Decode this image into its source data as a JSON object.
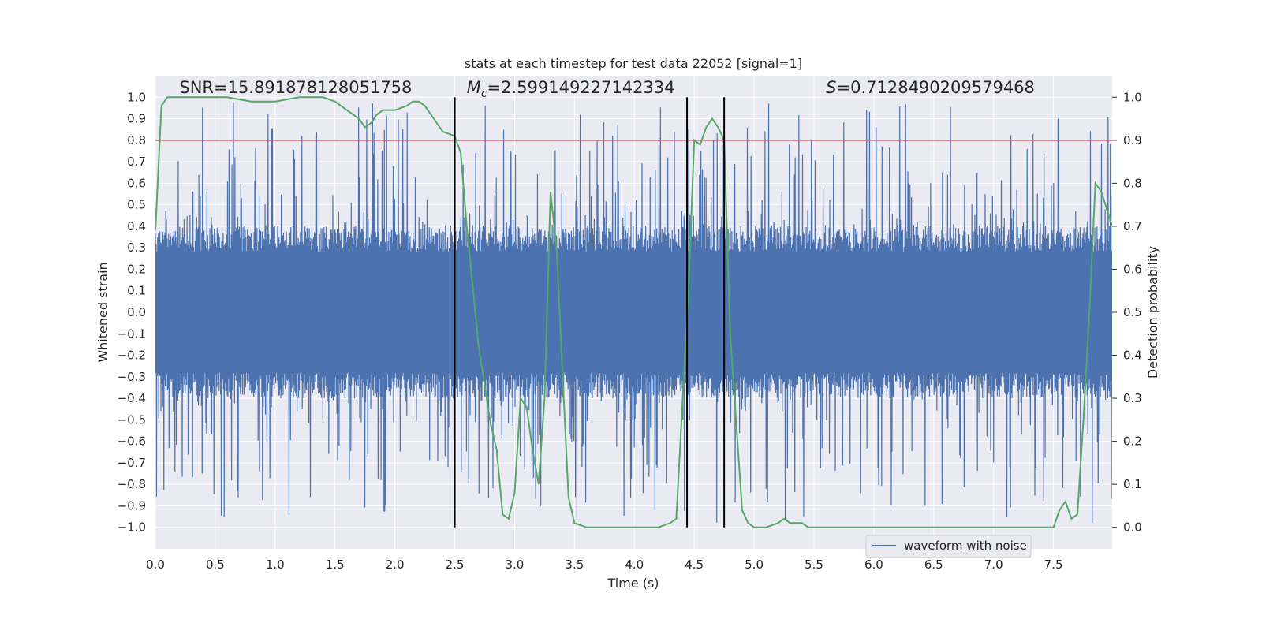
{
  "chart_data": {
    "type": "line",
    "title": "stats at each timestep for test data 22052 [signal=1]",
    "xlabel": "Time (s)",
    "ylabel": "Whitened strain",
    "ylabel_right": "Detection probability",
    "xlim": [
      0,
      7.99
    ],
    "ylim": [
      -1.1,
      1.1
    ],
    "ylim_right": [
      -0.05,
      1.05
    ],
    "x_ticks": [
      0.0,
      0.5,
      1.0,
      1.5,
      2.0,
      2.5,
      3.0,
      3.5,
      4.0,
      4.5,
      5.0,
      5.5,
      6.0,
      6.5,
      7.0,
      7.5
    ],
    "x_tick_labels": [
      "0.0",
      "0.5",
      "1.0",
      "1.5",
      "2.0",
      "2.5",
      "3.0",
      "3.5",
      "4.0",
      "4.5",
      "5.0",
      "5.5",
      "6.0",
      "6.5",
      "7.0",
      "7.5"
    ],
    "y_ticks": [
      -1.0,
      -0.9,
      -0.8,
      -0.7,
      -0.6,
      -0.5,
      -0.4,
      -0.3,
      -0.2,
      -0.1,
      0.0,
      0.1,
      0.2,
      0.3,
      0.4,
      0.5,
      0.6,
      0.7,
      0.8,
      0.9,
      1.0
    ],
    "y_tick_labels": [
      "−1.0",
      "−0.9",
      "−0.8",
      "−0.7",
      "−0.6",
      "−0.5",
      "−0.4",
      "−0.3",
      "−0.2",
      "−0.1",
      "0.0",
      "0.1",
      "0.2",
      "0.3",
      "0.4",
      "0.5",
      "0.6",
      "0.7",
      "0.8",
      "0.9",
      "1.0"
    ],
    "y_right_ticks": [
      0.0,
      0.1,
      0.2,
      0.3,
      0.4,
      0.5,
      0.6,
      0.7,
      0.8,
      0.9,
      1.0
    ],
    "y_right_tick_labels": [
      "0.0",
      "0.1",
      "0.2",
      "0.3",
      "0.4",
      "0.5",
      "0.6",
      "0.7",
      "0.8",
      "0.9",
      "1.0"
    ],
    "grid": true,
    "threshold": {
      "value": 0.9,
      "axis": "right",
      "color": "#c44e52"
    },
    "vlines": [
      2.5,
      4.44,
      4.75
    ],
    "vline_range": [
      -1.0,
      1.0
    ],
    "annotations": [
      {
        "text": "SNR=15.891878128051758",
        "x": 0.2,
        "y": 1.02
      },
      {
        "text": "M_c=2.599149227142334",
        "x": 2.6,
        "y": 1.02
      },
      {
        "text": "S=0.7128490209579468",
        "x": 5.6,
        "y": 1.02
      }
    ],
    "legend": {
      "entries": [
        "waveform with noise"
      ],
      "location": "lower right"
    },
    "series": [
      {
        "name": "waveform with noise",
        "axis": "left",
        "color": "#4c72b0",
        "kind": "noise",
        "typical_envelope": [
          -0.4,
          0.4
        ],
        "max_abs": 0.98
      },
      {
        "name": "Detection probability",
        "axis": "right",
        "color": "#55a868",
        "x": [
          0.0,
          0.05,
          0.1,
          0.2,
          0.4,
          0.6,
          0.8,
          1.0,
          1.2,
          1.4,
          1.5,
          1.6,
          1.7,
          1.75,
          1.8,
          1.85,
          1.9,
          2.0,
          2.1,
          2.15,
          2.2,
          2.25,
          2.3,
          2.4,
          2.5,
          2.55,
          2.6,
          2.7,
          2.8,
          2.85,
          2.9,
          2.95,
          3.0,
          3.05,
          3.1,
          3.15,
          3.2,
          3.25,
          3.3,
          3.35,
          3.45,
          3.5,
          3.6,
          3.8,
          4.0,
          4.2,
          4.3,
          4.35,
          4.4,
          4.45,
          4.5,
          4.55,
          4.6,
          4.65,
          4.7,
          4.75,
          4.8,
          4.9,
          4.95,
          5.0,
          5.1,
          5.2,
          5.25,
          5.3,
          5.4,
          5.45,
          5.5,
          5.6,
          5.8,
          6.0,
          6.1,
          6.2,
          6.4,
          6.6,
          6.8,
          6.9,
          7.0,
          7.05,
          7.1,
          7.2,
          7.3,
          7.4,
          7.5,
          7.55,
          7.6,
          7.65,
          7.7,
          7.75,
          7.8,
          7.85,
          7.9,
          7.99
        ],
        "values": [
          0.69,
          0.98,
          1.0,
          1.0,
          1.0,
          1.0,
          0.99,
          0.99,
          1.0,
          1.0,
          0.99,
          0.97,
          0.95,
          0.93,
          0.94,
          0.96,
          0.97,
          0.97,
          0.98,
          0.99,
          0.99,
          0.98,
          0.96,
          0.92,
          0.91,
          0.87,
          0.7,
          0.42,
          0.24,
          0.18,
          0.03,
          0.02,
          0.08,
          0.3,
          0.28,
          0.18,
          0.1,
          0.3,
          0.78,
          0.65,
          0.07,
          0.01,
          0.0,
          0.0,
          0.0,
          0.0,
          0.01,
          0.02,
          0.28,
          0.54,
          0.9,
          0.89,
          0.93,
          0.95,
          0.93,
          0.9,
          0.45,
          0.04,
          0.01,
          0.0,
          0.0,
          0.01,
          0.02,
          0.01,
          0.01,
          0.0,
          0.0,
          0.0,
          0.0,
          0.0,
          0.0,
          0.0,
          0.0,
          0.0,
          0.0,
          0.0,
          0.0,
          0.0,
          0.0,
          0.0,
          0.0,
          0.0,
          0.0,
          0.04,
          0.06,
          0.02,
          0.03,
          0.25,
          0.5,
          0.8,
          0.78,
          0.7
        ]
      }
    ]
  }
}
